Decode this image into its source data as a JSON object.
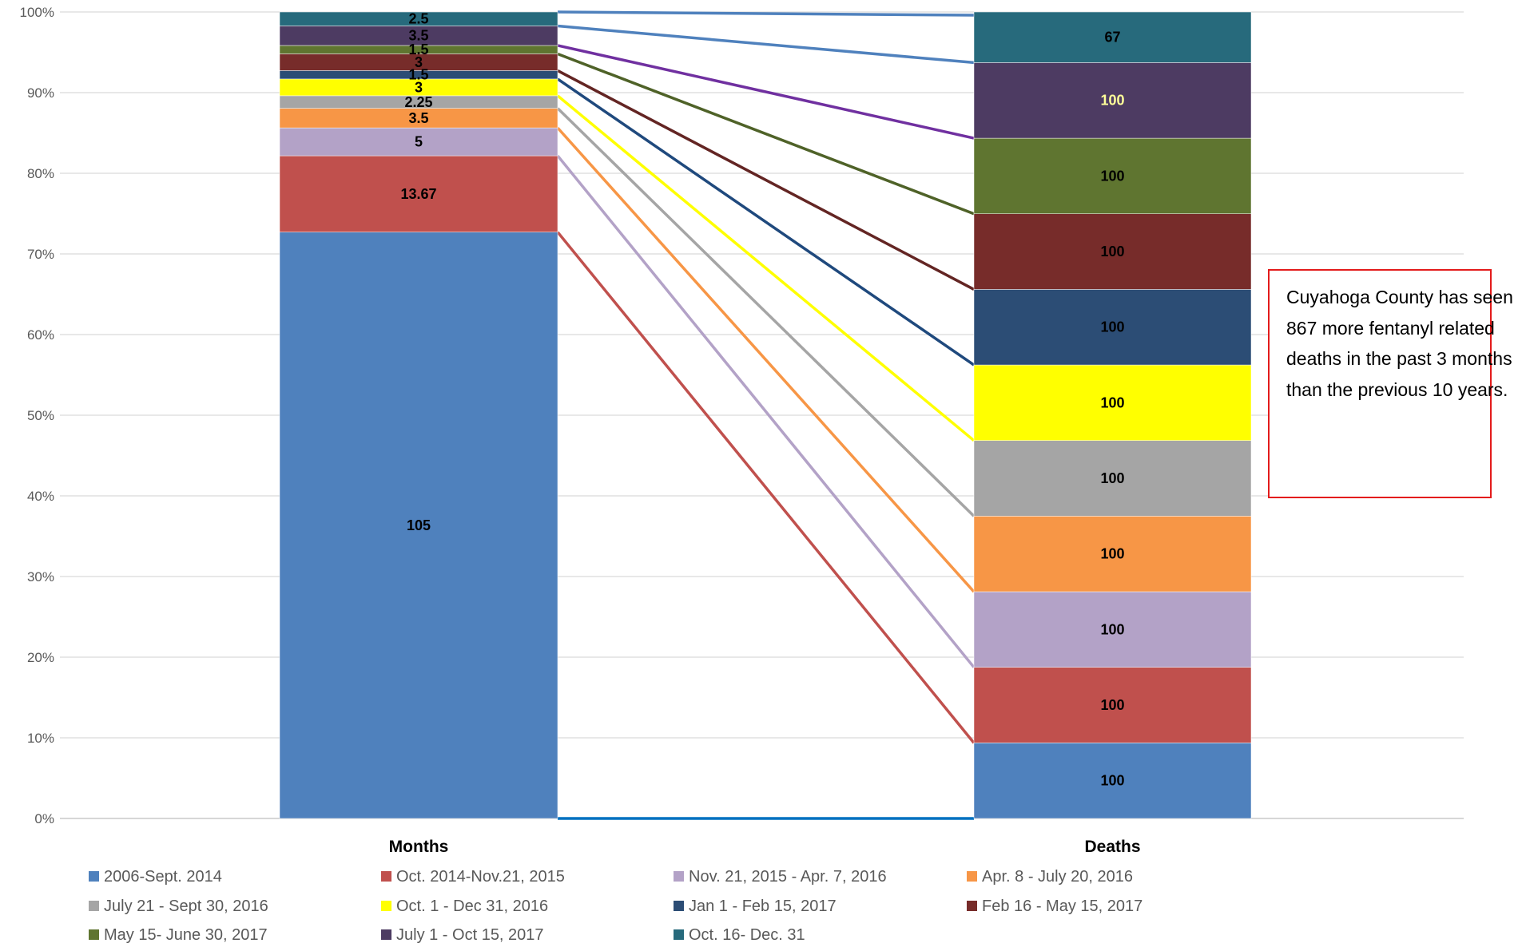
{
  "chart_data": {
    "type": "bar",
    "stacked": "percent",
    "categories": [
      "Months",
      "Deaths"
    ],
    "y_ticks": [
      "0%",
      "10%",
      "20%",
      "30%",
      "40%",
      "50%",
      "60%",
      "70%",
      "80%",
      "90%",
      "100%"
    ],
    "ylim": [
      0,
      100
    ],
    "grid": true,
    "legend_position": "bottom",
    "connector_lines": true,
    "series": [
      {
        "name": "2006-Sept. 2014",
        "color": "#4f81bd",
        "line_color": "#0070c0",
        "values": [
          105,
          100
        ],
        "labels": [
          "105",
          "100"
        ],
        "label_colors": [
          "#000000",
          "#000000"
        ]
      },
      {
        "name": "Oct. 2014-Nov.21, 2015",
        "color": "#c0504d",
        "line_color": "#c0504d",
        "values": [
          13.67,
          100
        ],
        "labels": [
          "13.67",
          "100"
        ],
        "label_colors": [
          "#000000",
          "#000000"
        ]
      },
      {
        "name": "Nov. 21, 2015 - Apr. 7, 2016",
        "color": "#b3a2c7",
        "line_color": "#b3a2c7",
        "values": [
          5,
          100
        ],
        "labels": [
          "5",
          "100"
        ],
        "label_colors": [
          "#000000",
          "#000000"
        ]
      },
      {
        "name": "Apr. 8 - July 20, 2016",
        "color": "#f79646",
        "line_color": "#f79646",
        "values": [
          3.5,
          100
        ],
        "labels": [
          "3.5",
          "100"
        ],
        "label_colors": [
          "#000000",
          "#000000"
        ]
      },
      {
        "name": "July 21 - Sept 30, 2016",
        "color": "#a5a5a5",
        "line_color": "#a5a5a5",
        "values": [
          2.25,
          100
        ],
        "labels": [
          "2.25",
          "100"
        ],
        "label_colors": [
          "#000000",
          "#000000"
        ]
      },
      {
        "name": "Oct. 1 - Dec 31, 2016",
        "color": "#ffff00",
        "line_color": "#ffff00",
        "values": [
          3,
          100
        ],
        "labels": [
          "3",
          "100"
        ],
        "label_colors": [
          "#000000",
          "#000000"
        ]
      },
      {
        "name": "Jan 1 - Feb 15, 2017",
        "color": "#2c4d75",
        "line_color": "#1f497d",
        "values": [
          1.5,
          100
        ],
        "labels": [
          "1.5",
          "100"
        ],
        "label_colors": [
          "#000000",
          "#000000"
        ]
      },
      {
        "name": "Feb 16 - May 15, 2017",
        "color": "#772c2a",
        "line_color": "#632523",
        "values": [
          3,
          100
        ],
        "labels": [
          "3",
          "100"
        ],
        "label_colors": [
          "#000000",
          "#000000"
        ]
      },
      {
        "name": "May 15- June 30, 2017",
        "color": "#5f7530",
        "line_color": "#4f6228",
        "values": [
          1.5,
          100
        ],
        "labels": [
          "1.5",
          "100"
        ],
        "label_colors": [
          "#000000",
          "#000000"
        ]
      },
      {
        "name": "July 1 - Oct 15, 2017",
        "color": "#4d3b62",
        "line_color": "#7030a0",
        "values": [
          3.5,
          100
        ],
        "labels": [
          "3.5",
          "100"
        ],
        "label_colors": [
          "#000000",
          "#ffff99"
        ]
      },
      {
        "name": "Oct. 16- Dec. 31",
        "color": "#276a7c",
        "line_color": "#4f81bd",
        "values": [
          2.5,
          67
        ],
        "labels": [
          "2.5",
          "67"
        ],
        "label_colors": [
          "#000000",
          "#000000"
        ]
      }
    ]
  },
  "annotation": {
    "text": "Cuyahoga County has seen 867 more fentanyl related deaths in the past 3 months than the previous 10 years.",
    "border_color": "#e31b1b"
  }
}
